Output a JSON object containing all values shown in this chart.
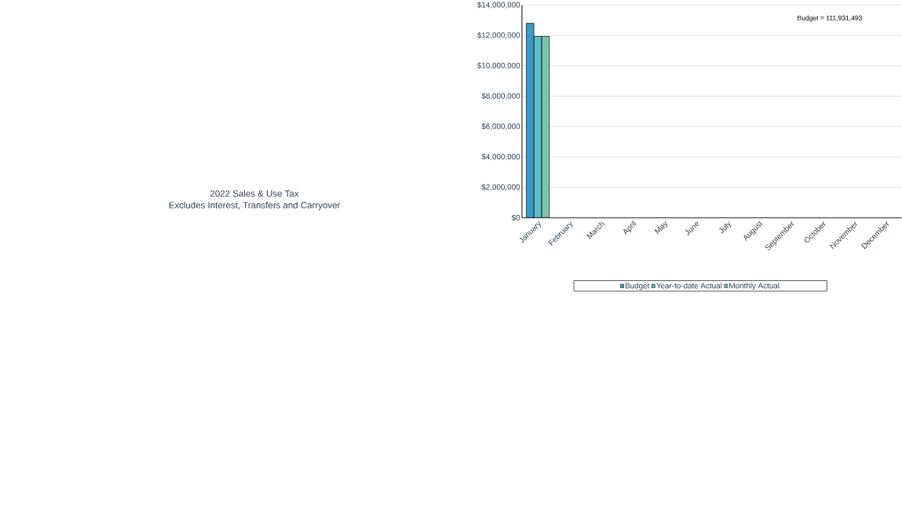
{
  "chart_data": {
    "type": "bar",
    "title": "2022 Sales & Use Tax",
    "subtitle": "Excludes Interest, Transfers and Carryover",
    "categories": [
      "January",
      "February",
      "March",
      "April",
      "May",
      "June",
      "July",
      "August",
      "September",
      "October",
      "November",
      "December"
    ],
    "series": [
      {
        "name": "Budget",
        "color": "#3a9cc6",
        "values": [
          12800000,
          null,
          null,
          null,
          null,
          null,
          null,
          null,
          null,
          null,
          null,
          null
        ]
      },
      {
        "name": "Year-to-date Actual",
        "color": "#5fbfc8",
        "values": [
          11940000,
          null,
          null,
          null,
          null,
          null,
          null,
          null,
          null,
          null,
          null,
          null
        ]
      },
      {
        "name": "Monthly Actual",
        "color": "#7cc4a8",
        "values": [
          11940000,
          null,
          null,
          null,
          null,
          null,
          null,
          null,
          null,
          null,
          null,
          null
        ]
      }
    ],
    "ylim": [
      0,
      14000000
    ],
    "yticks": [
      {
        "value": 0,
        "label": "$0"
      },
      {
        "value": 2000000,
        "label": "$2,000,000"
      },
      {
        "value": 4000000,
        "label": "$4,000,000"
      },
      {
        "value": 6000000,
        "label": "$6,000,000"
      },
      {
        "value": 8000000,
        "label": "$8,000,000"
      },
      {
        "value": 10000000,
        "label": "$10,000,000"
      },
      {
        "value": 12000000,
        "label": "$12,000,000"
      },
      {
        "value": 14000000,
        "label": "$14,000,000"
      }
    ],
    "annotations": [
      "Budget = 111,931,493"
    ],
    "grid": "y",
    "legend": "bottom"
  }
}
